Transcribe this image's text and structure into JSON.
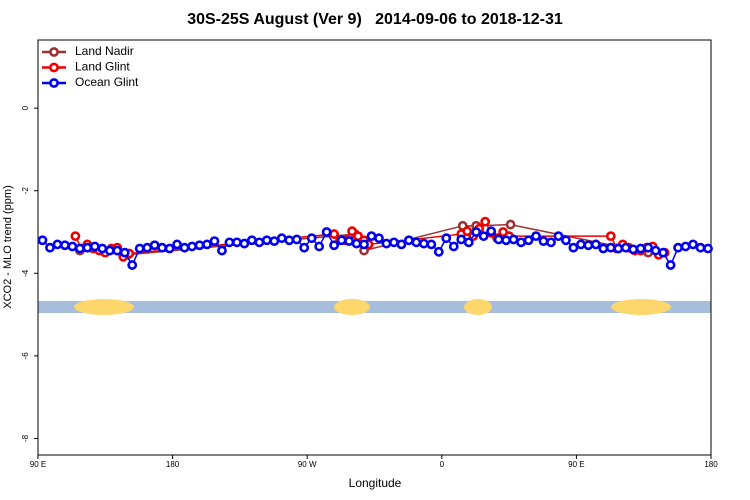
{
  "chart_data": {
    "type": "scatter",
    "title": "30S-25S August (Ver 9)   2014-09-06 to 2018-12-31",
    "x_label": "Longitude",
    "y_label": "XCO2 - MLO trend (ppm)",
    "xlim": [
      90,
      540
    ],
    "ylim": [
      -8.4,
      1.65
    ],
    "xticks": [
      {
        "value": 90,
        "label": "90 E"
      },
      180,
      {
        "value": 270,
        "label": "90 W"
      },
      {
        "value": 360,
        "label": "0"
      },
      {
        "value": 450,
        "label": "90 E"
      },
      {
        "value": 540,
        "label": "180"
      }
    ],
    "yticks": [
      0,
      -2,
      -4,
      -6,
      -8
    ],
    "legend": "top-left",
    "series": [
      {
        "name": "Land Nadir",
        "color": "#993333",
        "x": [
          118,
          150,
          302,
          308,
          374,
          383,
          406,
          498
        ],
        "values": [
          -3.45,
          -3.55,
          -3.05,
          -3.45,
          -2.85,
          -2.85,
          -2.82,
          -3.5
        ]
      },
      {
        "name": "Land Glint",
        "color": "#ee0000",
        "x": [
          115,
          119,
          123,
          127,
          131,
          135,
          139,
          143,
          147,
          151,
          288,
          292,
          296,
          300,
          304,
          308,
          311,
          373,
          377,
          381,
          385,
          389,
          393,
          397,
          401,
          405,
          473,
          477,
          481,
          485,
          489,
          493,
          497,
          501,
          505,
          509
        ],
        "values": [
          -3.1,
          -3.4,
          -3.3,
          -3.4,
          -3.45,
          -3.5,
          -3.4,
          -3.38,
          -3.6,
          -3.52,
          -3.05,
          -3.2,
          -3.2,
          -2.98,
          -3.1,
          -3.2,
          -3.3,
          -3.05,
          -2.98,
          -3.1,
          -2.92,
          -2.75,
          -3.02,
          -3.15,
          -3.0,
          -3.1,
          -3.1,
          -3.4,
          -3.3,
          -3.38,
          -3.45,
          -3.45,
          -3.38,
          -3.35,
          -3.55,
          -3.5
        ]
      },
      {
        "name": "Ocean Glint",
        "color": "#0000ee",
        "x": [
          93,
          98,
          103,
          108,
          113,
          118,
          123,
          128,
          133,
          138,
          143,
          148,
          153,
          158,
          163,
          168,
          173,
          178,
          183,
          188,
          193,
          198,
          203,
          208,
          213,
          218,
          223,
          228,
          233,
          238,
          243,
          248,
          253,
          258,
          263,
          268,
          273,
          278,
          283,
          288,
          293,
          298,
          303,
          308,
          313,
          318,
          323,
          328,
          333,
          338,
          343,
          348,
          353,
          358,
          363,
          368,
          373,
          378,
          383,
          388,
          393,
          398,
          403,
          408,
          413,
          418,
          423,
          428,
          433,
          438,
          443,
          448,
          453,
          458,
          463,
          468,
          473,
          478,
          483,
          488,
          493,
          498,
          503,
          508,
          513,
          518,
          523,
          528,
          533,
          538
        ],
        "values": [
          -3.2,
          -3.38,
          -3.3,
          -3.32,
          -3.35,
          -3.4,
          -3.38,
          -3.35,
          -3.4,
          -3.45,
          -3.45,
          -3.5,
          -3.8,
          -3.4,
          -3.38,
          -3.32,
          -3.38,
          -3.4,
          -3.3,
          -3.38,
          -3.35,
          -3.32,
          -3.3,
          -3.22,
          -3.45,
          -3.25,
          -3.25,
          -3.28,
          -3.2,
          -3.25,
          -3.2,
          -3.22,
          -3.15,
          -3.2,
          -3.18,
          -3.38,
          -3.15,
          -3.35,
          -3.0,
          -3.32,
          -3.2,
          -3.22,
          -3.28,
          -3.3,
          -3.1,
          -3.15,
          -3.28,
          -3.25,
          -3.3,
          -3.2,
          -3.25,
          -3.28,
          -3.3,
          -3.48,
          -3.15,
          -3.35,
          -3.18,
          -3.25,
          -3.0,
          -3.1,
          -2.98,
          -3.18,
          -3.2,
          -3.18,
          -3.25,
          -3.2,
          -3.1,
          -3.22,
          -3.25,
          -3.1,
          -3.2,
          -3.38,
          -3.3,
          -3.32,
          -3.3,
          -3.4,
          -3.38,
          -3.4,
          -3.38,
          -3.42,
          -3.4,
          -3.38,
          -3.45,
          -3.5,
          -3.8,
          -3.38,
          -3.35,
          -3.3,
          -3.38,
          -3.4
        ]
      }
    ]
  }
}
